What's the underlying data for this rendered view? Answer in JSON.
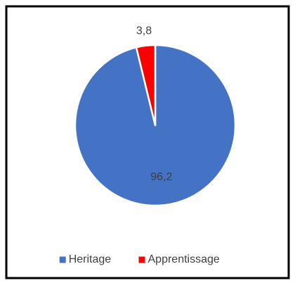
{
  "chart_data": {
    "type": "pie",
    "categories": [
      "Heritage",
      "Apprentissage"
    ],
    "values": [
      96.2,
      3.8
    ],
    "value_labels": [
      "96,2",
      "3,8"
    ],
    "colors": [
      "#4472c4",
      "#ff0000"
    ],
    "legend": "bottom"
  }
}
